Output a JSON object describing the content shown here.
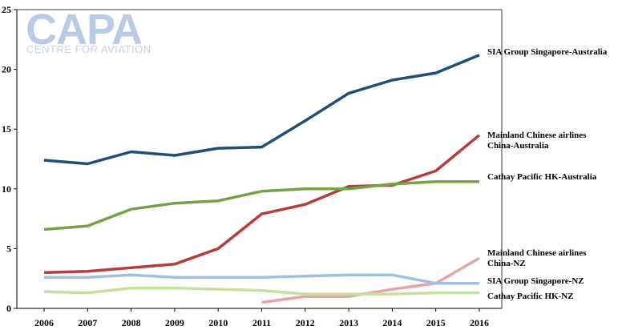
{
  "logo": {
    "main": "CAPA",
    "sub": "CENTRE FOR AVIATION"
  },
  "chart_data": {
    "type": "line",
    "title": "",
    "xlabel": "",
    "ylabel": "",
    "categories": [
      "2006",
      "2007",
      "2008",
      "2009",
      "2010",
      "2011",
      "2012",
      "2013",
      "2014",
      "2015",
      "2016"
    ],
    "ylim": [
      0,
      25
    ],
    "yticks": [
      "0",
      "5",
      "10",
      "15",
      "20",
      "25"
    ],
    "grid": false,
    "legend": "right-side line labels",
    "series": [
      {
        "name": "SIA Group Singapore-Australia",
        "label_lines": [
          "SIA Group Singapore-Australia"
        ],
        "color": "#1f4e79",
        "values": [
          12.4,
          12.1,
          13.1,
          12.8,
          13.4,
          13.5,
          15.7,
          18.0,
          19.1,
          19.7,
          21.2
        ]
      },
      {
        "name": "Mainland Chinese airlines China-Australia",
        "label_lines": [
          "Mainland Chinese airlines",
          "China-Australia"
        ],
        "color": "#b83c3a",
        "values": [
          3.0,
          3.1,
          3.4,
          3.7,
          5.0,
          7.9,
          8.7,
          10.2,
          10.3,
          11.5,
          14.5
        ]
      },
      {
        "name": "Cathay Pacific HK-Australia",
        "label_lines": [
          "Cathay Pacific HK-Australia"
        ],
        "color": "#72a244",
        "values": [
          6.6,
          6.9,
          8.3,
          8.8,
          9.0,
          9.8,
          10.0,
          10.0,
          10.4,
          10.6,
          10.6
        ]
      },
      {
        "name": "Mainland Chinese airlines China-NZ",
        "label_lines": [
          "Mainland Chinese airlines",
          "China-NZ"
        ],
        "color": "#eba4a6",
        "values": [
          null,
          null,
          null,
          null,
          null,
          0.5,
          1.0,
          1.0,
          1.6,
          2.1,
          4.2
        ]
      },
      {
        "name": "SIA Group Singapore-NZ",
        "label_lines": [
          "SIA Group Singapore-NZ"
        ],
        "color": "#9fc0e4",
        "values": [
          2.6,
          2.6,
          2.8,
          2.6,
          2.6,
          2.6,
          2.7,
          2.8,
          2.8,
          2.1,
          2.1
        ]
      },
      {
        "name": "Cathay Pacific HK-NZ",
        "label_lines": [
          "Cathay Pacific HK-NZ"
        ],
        "color": "#c7df9d",
        "values": [
          1.4,
          1.3,
          1.7,
          1.7,
          1.6,
          1.5,
          1.2,
          1.2,
          1.2,
          1.3,
          1.3
        ]
      }
    ]
  }
}
